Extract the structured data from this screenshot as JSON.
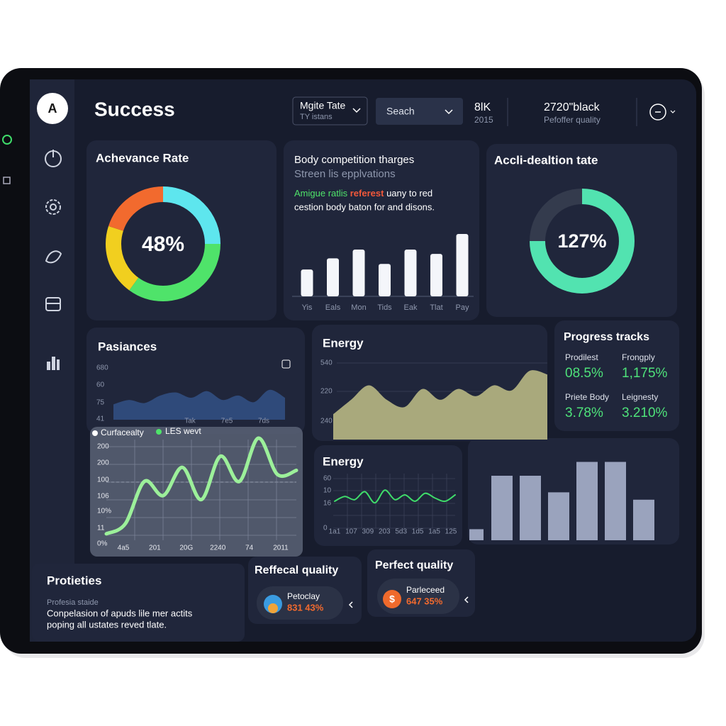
{
  "header": {
    "avatar": "A",
    "title": "Success",
    "dropdown": {
      "label": "Mgite Tate",
      "sub": "TY istans"
    },
    "search": "Seach",
    "stat1": {
      "value": "8lK",
      "sub": "2015"
    },
    "stat2": {
      "value": "2720\"black",
      "sub": "Pefoffer quality"
    }
  },
  "donut1": {
    "title": "Achevance Rate",
    "label": "48%",
    "segments": [
      25,
      35,
      20,
      20
    ],
    "colors": [
      "#5ee6ee",
      "#4fe36a",
      "#f1cf1f",
      "#f26a2e"
    ]
  },
  "bars1": {
    "title": "Body competition tharges",
    "subtitle": "Streen lis epplvations",
    "line1": [
      "Amigue ratlis ",
      "referest",
      " uany to red"
    ],
    "line2": "cestion body baton for and disons.",
    "categories": [
      "Yis",
      "Eals",
      "Mon",
      "Tids",
      "Eak",
      "Tlat",
      "Pay"
    ],
    "values": [
      43,
      61,
      75,
      52,
      75,
      68,
      100
    ],
    "ylim": [
      0,
      100
    ],
    "color": "#f4f6fa"
  },
  "donut2": {
    "title": "Accli-dealtion tate",
    "label": "127%",
    "segments": [
      75,
      25
    ],
    "colors": [
      "#52e3b0",
      "#343b4d"
    ]
  },
  "area1": {
    "title": "Pasiances",
    "y_labels": [
      "680",
      "60",
      "75",
      "41"
    ],
    "x_labels": [
      "Tak",
      "7e5",
      "7ds"
    ],
    "values": [
      35,
      45,
      38,
      55,
      62,
      50,
      65,
      45,
      55,
      40,
      68,
      50
    ],
    "ylim": [
      0,
      100
    ],
    "color": "#2f4a7a"
  },
  "legend": [
    "Curfacealty",
    "LES wevt"
  ],
  "line1": {
    "y_labels": [
      "200",
      "200",
      "100",
      "106",
      "10%",
      "11",
      "0%"
    ],
    "x_labels": [
      "4a5",
      "201",
      "20G",
      "2240",
      "74",
      "2011"
    ],
    "values": [
      5,
      15,
      57,
      43,
      71,
      39,
      82,
      57,
      100,
      64,
      68
    ],
    "ylim": [
      0,
      100
    ],
    "color": "#9cf09a"
  },
  "area2": {
    "title": "Energy",
    "y_labels": [
      "540",
      "220",
      "240"
    ],
    "values": [
      35,
      55,
      75,
      55,
      45,
      70,
      55,
      70,
      60,
      75,
      68,
      95,
      90
    ],
    "ylim": [
      0,
      100
    ],
    "color": "#a9a97c"
  },
  "progress": {
    "title": "Progress tracks",
    "items": [
      {
        "label": "Prodilest",
        "value": "08.5%"
      },
      {
        "label": "Frongply",
        "value": "1,175%"
      },
      {
        "label": "Priete Body",
        "value": "3.78%"
      },
      {
        "label": "Leignesty",
        "value": "3.210%"
      }
    ]
  },
  "line2": {
    "title": "Energy",
    "y_labels": [
      "60",
      "10",
      "16",
      "0"
    ],
    "x_labels": [
      "1a1",
      "107",
      "309",
      "203",
      "5d3",
      "1d5",
      "1a5",
      "125"
    ],
    "values": [
      40,
      55,
      45,
      70,
      35,
      75,
      45,
      60,
      40,
      65,
      50,
      40,
      60
    ],
    "ylim": [
      0,
      100
    ],
    "color": "#3fdc6a"
  },
  "bars2": {
    "values": [
      12,
      70,
      70,
      52,
      85,
      85,
      44
    ],
    "ylim": [
      0,
      100
    ],
    "color": "#9aa3bd"
  },
  "footer": {
    "title": "Protieties",
    "sub": "Profesia staide",
    "line1": "Conpelasion of apuds lile mer actits",
    "line2": "poping all ustates reved tlate."
  },
  "card1": {
    "title": "Reffecal quality",
    "label": "Petoclay",
    "value": "831 43%"
  },
  "card2": {
    "title": "Perfect quality",
    "label": "Parleceed",
    "value": "647 35%"
  }
}
